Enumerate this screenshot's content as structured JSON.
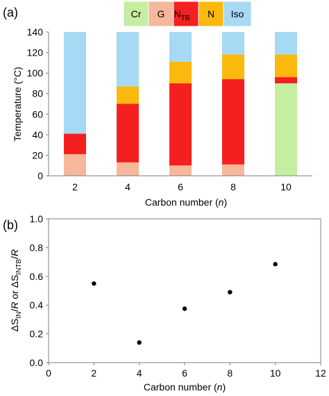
{
  "chart_data": [
    {
      "panel": "(a)",
      "type": "bar",
      "stacked": true,
      "xlabel": "Carbon number (n)",
      "xlabel_main": "Carbon number (",
      "xlabel_var": "n",
      "xlabel_close": ")",
      "ylabel": "Temperature (°C)",
      "ylim": [
        0,
        140
      ],
      "yticks": [
        0,
        20,
        40,
        60,
        80,
        100,
        120,
        140
      ],
      "categories": [
        "2",
        "4",
        "6",
        "8",
        "10"
      ],
      "legend_placement": "top",
      "legend": [
        {
          "key": "Cr",
          "label": "Cr",
          "color": "#c6eea0"
        },
        {
          "key": "G",
          "label": "G",
          "color": "#f6b79a"
        },
        {
          "key": "NTB",
          "label": "N",
          "sub": "TB",
          "color": "#f41f1f"
        },
        {
          "key": "N",
          "label": "N",
          "color": "#fbb80d"
        },
        {
          "key": "Iso",
          "label": "Iso",
          "color": "#a6d9f4"
        }
      ],
      "bars": [
        {
          "category": "2",
          "segments": [
            {
              "phase": "G",
              "from": 0,
              "to": 21
            },
            {
              "phase": "NTB",
              "from": 21,
              "to": 41
            },
            {
              "phase": "Iso",
              "from": 41,
              "to": 140
            }
          ]
        },
        {
          "category": "4",
          "segments": [
            {
              "phase": "G",
              "from": 0,
              "to": 13
            },
            {
              "phase": "NTB",
              "from": 13,
              "to": 70
            },
            {
              "phase": "N",
              "from": 70,
              "to": 87
            },
            {
              "phase": "Iso",
              "from": 87,
              "to": 140
            }
          ]
        },
        {
          "category": "6",
          "segments": [
            {
              "phase": "G",
              "from": 0,
              "to": 10
            },
            {
              "phase": "NTB",
              "from": 10,
              "to": 90
            },
            {
              "phase": "N",
              "from": 90,
              "to": 111
            },
            {
              "phase": "Iso",
              "from": 111,
              "to": 140
            }
          ]
        },
        {
          "category": "8",
          "segments": [
            {
              "phase": "G",
              "from": 0,
              "to": 11
            },
            {
              "phase": "NTB",
              "from": 11,
              "to": 94
            },
            {
              "phase": "N",
              "from": 94,
              "to": 118
            },
            {
              "phase": "Iso",
              "from": 118,
              "to": 140
            }
          ]
        },
        {
          "category": "10",
          "segments": [
            {
              "phase": "Cr",
              "from": 0,
              "to": 90
            },
            {
              "phase": "NTB",
              "from": 90,
              "to": 96
            },
            {
              "phase": "N",
              "from": 96,
              "to": 118
            },
            {
              "phase": "Iso",
              "from": 118,
              "to": 140
            }
          ]
        }
      ]
    },
    {
      "panel": "(b)",
      "type": "scatter",
      "xlabel": "Carbon number (n)",
      "xlabel_main": "Carbon number (",
      "xlabel_var": "n",
      "xlabel_close": ")",
      "ylabel": "ΔS_IN/R or ΔS_INTB/R",
      "xlim": [
        0,
        12
      ],
      "xticks": [
        0,
        2,
        4,
        6,
        8,
        10,
        12
      ],
      "ylim": [
        0.0,
        1.0
      ],
      "yticks": [
        "0.0",
        "0.2",
        "0.4",
        "0.6",
        "0.8",
        "1.0"
      ],
      "x": [
        2,
        4,
        6,
        8,
        10
      ],
      "y": [
        0.55,
        0.14,
        0.375,
        0.49,
        0.685
      ],
      "grid": false
    }
  ]
}
